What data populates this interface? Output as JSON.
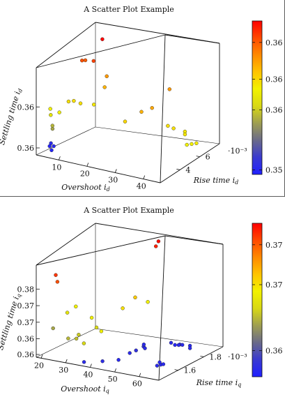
{
  "colorbar_gradient": [
    "#1f1fff",
    "#3a3ad0",
    "#6a6a8a",
    "#9e9e52",
    "#d8d815",
    "#f2f200",
    "#ffc400",
    "#ff8a00",
    "#ff4a00",
    "#ff0000"
  ],
  "chart_data": [
    {
      "type": "scatter",
      "title": "A Scatter Plot Example",
      "xlabel": "Overshoot i_d",
      "ylabel": "Rise time i_d",
      "zlabel": "Settling time i_d",
      "x_ticks": [
        "10",
        "20",
        "30",
        "40"
      ],
      "y_ticks": [
        "4",
        "6"
      ],
      "y_multiplier": "·10⁻³",
      "z_ticks": [
        "0.36",
        "0.36"
      ],
      "colorbar_ticks": [
        "0.36",
        "0.36",
        "0.36",
        "0.35"
      ],
      "colorbar_note": "color encodes settling time (blue = low, red = high)",
      "points": [
        {
          "x": 5.5,
          "y": 2.35,
          "z": 0.1,
          "c": 0.02
        },
        {
          "x": 6.2,
          "y": 2.35,
          "z": 0.06,
          "c": 0.02
        },
        {
          "x": 5.8,
          "y": 2.4,
          "z": 0.13,
          "c": 0.05
        },
        {
          "x": 6.6,
          "y": 2.45,
          "z": 0.1,
          "c": 0.04
        },
        {
          "x": 6.0,
          "y": 2.5,
          "z": 0.28,
          "c": 0.35
        },
        {
          "x": 6.3,
          "y": 2.4,
          "z": 0.32,
          "c": 0.38
        },
        {
          "x": 5.0,
          "y": 2.6,
          "z": 0.42,
          "c": 0.5
        },
        {
          "x": 4.5,
          "y": 2.7,
          "z": 0.48,
          "c": 0.55
        },
        {
          "x": 8.0,
          "y": 2.6,
          "z": 0.45,
          "c": 0.55
        },
        {
          "x": 10.5,
          "y": 2.8,
          "z": 0.55,
          "c": 0.6
        },
        {
          "x": 12.0,
          "y": 2.9,
          "z": 0.55,
          "c": 0.6
        },
        {
          "x": 14.0,
          "y": 3.0,
          "z": 0.52,
          "c": 0.6
        },
        {
          "x": 18.0,
          "y": 3.2,
          "z": 0.5,
          "c": 0.58
        },
        {
          "x": 21.0,
          "y": 3.4,
          "z": 0.65,
          "c": 0.7
        },
        {
          "x": 22.0,
          "y": 3.3,
          "z": 0.75,
          "c": 0.75
        },
        {
          "x": 28.0,
          "y": 3.5,
          "z": 0.35,
          "c": 0.62
        },
        {
          "x": 32.0,
          "y": 4.0,
          "z": 0.42,
          "c": 0.7
        },
        {
          "x": 35.0,
          "y": 4.2,
          "z": 0.45,
          "c": 0.72
        },
        {
          "x": 40.0,
          "y": 4.5,
          "z": 0.6,
          "c": 0.75
        },
        {
          "x": 38.0,
          "y": 5.0,
          "z": 0.28,
          "c": 0.6
        },
        {
          "x": 39.0,
          "y": 5.3,
          "z": 0.25,
          "c": 0.6
        },
        {
          "x": 42.0,
          "y": 5.6,
          "z": 0.22,
          "c": 0.58
        },
        {
          "x": 41.0,
          "y": 5.9,
          "z": 0.18,
          "c": 0.58
        },
        {
          "x": 40.0,
          "y": 6.4,
          "z": 0.06,
          "c": 0.55
        },
        {
          "x": 41.0,
          "y": 6.6,
          "z": 0.06,
          "c": 0.56
        },
        {
          "x": 42.0,
          "y": 6.8,
          "z": 0.06,
          "c": 0.57
        },
        {
          "x": 12.0,
          "y": 5.8,
          "z": 1.0,
          "c": 1.0
        },
        {
          "x": 11.0,
          "y": 5.2,
          "z": 0.82,
          "c": 0.9
        },
        {
          "x": 9.0,
          "y": 4.6,
          "z": 0.86,
          "c": 0.88
        },
        {
          "x": 9.5,
          "y": 4.8,
          "z": 0.85,
          "c": 0.86
        }
      ]
    },
    {
      "type": "scatter",
      "title": "A Scatter Plot Example",
      "xlabel": "Overshoot i_q",
      "ylabel": "Rise time i_q",
      "zlabel": "Settling time i_q",
      "x_ticks": [
        "20",
        "30",
        "40",
        "50",
        "60"
      ],
      "y_ticks": [
        "1.6",
        "1.8"
      ],
      "y_multiplier": "·10⁻³",
      "z_ticks": [
        "0.36",
        "0.36",
        "0.37",
        "0.37",
        "0.38"
      ],
      "colorbar_ticks": [
        "0.37",
        "0.37",
        "0.36"
      ],
      "colorbar_note": "color encodes settling time (blue = low, red = high)",
      "points": [
        {
          "x": 20.0,
          "y": 1.55,
          "z": 0.25,
          "c": 0.35
        },
        {
          "x": 21.0,
          "y": 1.55,
          "z": 0.8,
          "c": 0.92
        },
        {
          "x": 24.0,
          "y": 1.5,
          "z": 0.76,
          "c": 0.88
        },
        {
          "x": 28.0,
          "y": 1.5,
          "z": 0.45,
          "c": 0.5
        },
        {
          "x": 29.0,
          "y": 1.55,
          "z": 0.48,
          "c": 0.55
        },
        {
          "x": 28.5,
          "y": 1.5,
          "z": 0.2,
          "c": 0.38
        },
        {
          "x": 30.0,
          "y": 1.6,
          "z": 0.1,
          "c": 0.45
        },
        {
          "x": 26.0,
          "y": 1.62,
          "z": 0.12,
          "c": 0.4
        },
        {
          "x": 25.5,
          "y": 1.65,
          "z": 0.14,
          "c": 0.42
        },
        {
          "x": 33.0,
          "y": 1.6,
          "z": 0.35,
          "c": 0.55
        },
        {
          "x": 34.0,
          "y": 1.62,
          "z": 0.25,
          "c": 0.45
        },
        {
          "x": 34.5,
          "y": 1.65,
          "z": 0.2,
          "c": 0.55
        },
        {
          "x": 35.0,
          "y": 1.5,
          "z": 0.0,
          "c": 0.05
        },
        {
          "x": 40.0,
          "y": 1.55,
          "z": 0.0,
          "c": 0.06
        },
        {
          "x": 44.0,
          "y": 1.6,
          "z": 0.0,
          "c": 0.04
        },
        {
          "x": 46.0,
          "y": 1.65,
          "z": 0.04,
          "c": 0.05
        },
        {
          "x": 47.0,
          "y": 1.68,
          "z": 0.05,
          "c": 0.08
        },
        {
          "x": 49.0,
          "y": 1.7,
          "z": 0.08,
          "c": 0.07
        },
        {
          "x": 40.5,
          "y": 1.7,
          "z": 0.4,
          "c": 0.6
        },
        {
          "x": 43.0,
          "y": 1.75,
          "z": 0.48,
          "c": 0.65
        },
        {
          "x": 48.0,
          "y": 1.75,
          "z": 0.45,
          "c": 0.55
        },
        {
          "x": 55.0,
          "y": 1.8,
          "z": 0.08,
          "c": 0.05
        },
        {
          "x": 56.0,
          "y": 1.85,
          "z": 0.04,
          "c": 0.04
        },
        {
          "x": 57.0,
          "y": 1.85,
          "z": 0.04,
          "c": 0.05
        },
        {
          "x": 58.0,
          "y": 1.8,
          "z": 0.07,
          "c": 0.04
        },
        {
          "x": 59.0,
          "y": 1.75,
          "z": 0.1,
          "c": 0.03
        },
        {
          "x": 58.5,
          "y": 1.88,
          "z": 0.02,
          "c": 0.04
        },
        {
          "x": 60.0,
          "y": 1.85,
          "z": 0.02,
          "c": 0.04
        },
        {
          "x": 61.0,
          "y": 1.6,
          "z": 0.02,
          "c": 0.04
        },
        {
          "x": 61.5,
          "y": 1.58,
          "z": 0.05,
          "c": 0.04
        },
        {
          "x": 62.0,
          "y": 1.55,
          "z": 0.04,
          "c": 0.05
        },
        {
          "x": 63.0,
          "y": 1.58,
          "z": 0.04,
          "c": 0.04
        },
        {
          "x": 52.0,
          "y": 1.65,
          "z": 0.1,
          "c": 0.05
        },
        {
          "x": 53.0,
          "y": 1.62,
          "z": 0.15,
          "c": 0.05
        },
        {
          "x": 45.0,
          "y": 1.9,
          "z": 0.95,
          "c": 0.98
        },
        {
          "x": 44.0,
          "y": 1.9,
          "z": 0.9,
          "c": 0.95
        }
      ]
    }
  ]
}
